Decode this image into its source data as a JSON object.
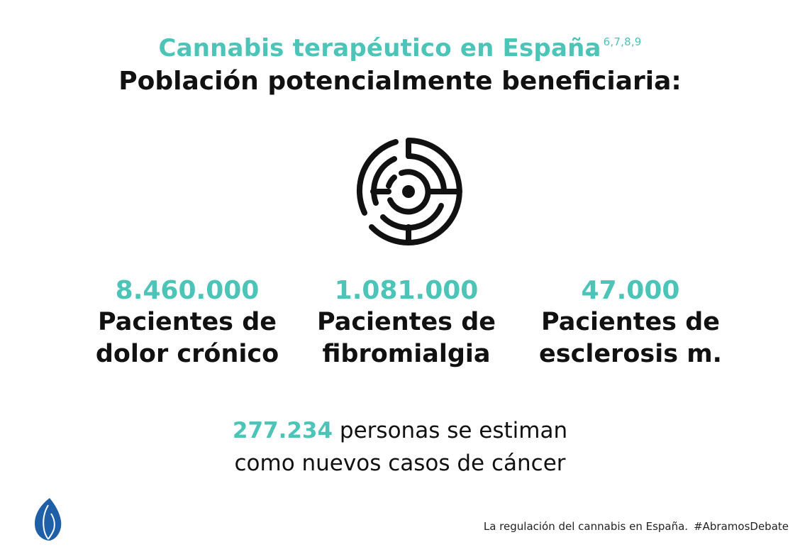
{
  "header": {
    "title": "Cannabis terapéutico en España",
    "title_refs": "6,7,8,9",
    "subtitle": "Población potencialmente beneficiaria:"
  },
  "icon": "maze-icon",
  "stats": [
    {
      "value": "8.460.000",
      "label_line1": "Pacientes de",
      "label_line2": "dolor crónico"
    },
    {
      "value": "1.081.000",
      "label_line1": "Pacientes de",
      "label_line2": "fibromialgia"
    },
    {
      "value": "47.000",
      "label_line1": "Pacientes de",
      "label_line2": "esclerosis m."
    }
  ],
  "summary": {
    "highlight": "277.234",
    "line1_rest": " personas se estiman",
    "line2": "como nuevos casos de cáncer"
  },
  "footer": {
    "text": "La regulación del cannabis en España.",
    "hashtag": "#AbramosDebate"
  },
  "colors": {
    "accent": "#4dc4b8",
    "text": "#111111",
    "logo": "#1e5fa8"
  }
}
